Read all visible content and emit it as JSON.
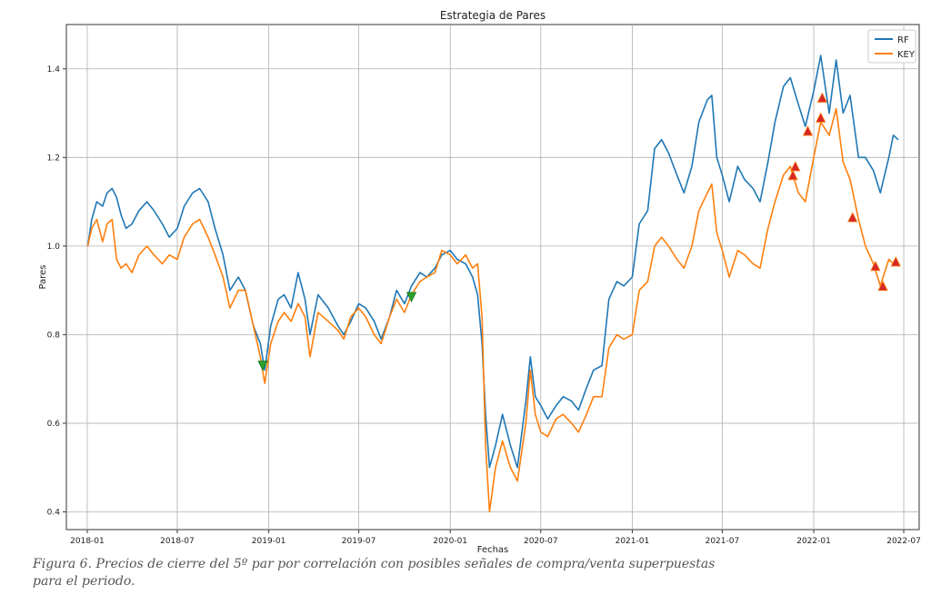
{
  "caption": "Figura 6. Precios de cierre del 5º par por correlación con posibles señales de compra/venta superpuestas para el periodo.",
  "chart_data": {
    "type": "line",
    "title": "Estrategia de Pares",
    "xlabel": "Fechas",
    "ylabel": "Pares",
    "ylim": [
      0.36,
      1.5
    ],
    "xlim": [
      "2017-11-20",
      "2022-08-01"
    ],
    "yticks": [
      "0.4",
      "0.6",
      "0.8",
      "1.0",
      "1.2",
      "1.4"
    ],
    "xticks": [
      "2018-01",
      "2018-07",
      "2019-01",
      "2019-07",
      "2020-01",
      "2020-07",
      "2021-01",
      "2021-07",
      "2022-01",
      "2022-07"
    ],
    "grid": true,
    "legend": "top-right",
    "colors": {
      "RF": "#1f77b4",
      "KEY": "#ff7f0e",
      "buy": "#2ca02c",
      "sell": "#d62728"
    },
    "series": [
      {
        "name": "RF",
        "points": [
          [
            "2018-01-02",
            1.0
          ],
          [
            "2018-01-10",
            1.06
          ],
          [
            "2018-01-20",
            1.1
          ],
          [
            "2018-02-01",
            1.09
          ],
          [
            "2018-02-10",
            1.12
          ],
          [
            "2018-02-20",
            1.13
          ],
          [
            "2018-03-01",
            1.11
          ],
          [
            "2018-03-10",
            1.07
          ],
          [
            "2018-03-20",
            1.04
          ],
          [
            "2018-04-01",
            1.05
          ],
          [
            "2018-04-15",
            1.08
          ],
          [
            "2018-05-01",
            1.1
          ],
          [
            "2018-05-15",
            1.08
          ],
          [
            "2018-06-01",
            1.05
          ],
          [
            "2018-06-15",
            1.02
          ],
          [
            "2018-07-01",
            1.04
          ],
          [
            "2018-07-15",
            1.09
          ],
          [
            "2018-08-01",
            1.12
          ],
          [
            "2018-08-15",
            1.13
          ],
          [
            "2018-09-01",
            1.1
          ],
          [
            "2018-09-15",
            1.04
          ],
          [
            "2018-10-01",
            0.98
          ],
          [
            "2018-10-15",
            0.9
          ],
          [
            "2018-11-01",
            0.93
          ],
          [
            "2018-11-15",
            0.9
          ],
          [
            "2018-12-01",
            0.82
          ],
          [
            "2018-12-15",
            0.78
          ],
          [
            "2018-12-24",
            0.72
          ],
          [
            "2019-01-05",
            0.82
          ],
          [
            "2019-01-20",
            0.88
          ],
          [
            "2019-02-01",
            0.89
          ],
          [
            "2019-02-15",
            0.86
          ],
          [
            "2019-03-01",
            0.94
          ],
          [
            "2019-03-15",
            0.88
          ],
          [
            "2019-03-25",
            0.8
          ],
          [
            "2019-04-10",
            0.89
          ],
          [
            "2019-05-01",
            0.86
          ],
          [
            "2019-05-20",
            0.82
          ],
          [
            "2019-06-01",
            0.8
          ],
          [
            "2019-06-15",
            0.83
          ],
          [
            "2019-07-01",
            0.87
          ],
          [
            "2019-07-15",
            0.86
          ],
          [
            "2019-08-01",
            0.83
          ],
          [
            "2019-08-15",
            0.79
          ],
          [
            "2019-09-01",
            0.84
          ],
          [
            "2019-09-15",
            0.9
          ],
          [
            "2019-10-01",
            0.87
          ],
          [
            "2019-10-15",
            0.91
          ],
          [
            "2019-11-01",
            0.94
          ],
          [
            "2019-11-15",
            0.93
          ],
          [
            "2019-12-01",
            0.95
          ],
          [
            "2019-12-15",
            0.98
          ],
          [
            "2020-01-01",
            0.99
          ],
          [
            "2020-01-15",
            0.97
          ],
          [
            "2020-02-01",
            0.96
          ],
          [
            "2020-02-15",
            0.93
          ],
          [
            "2020-02-25",
            0.89
          ],
          [
            "2020-03-05",
            0.78
          ],
          [
            "2020-03-12",
            0.62
          ],
          [
            "2020-03-20",
            0.5
          ],
          [
            "2020-04-01",
            0.55
          ],
          [
            "2020-04-15",
            0.62
          ],
          [
            "2020-05-01",
            0.55
          ],
          [
            "2020-05-15",
            0.5
          ],
          [
            "2020-06-01",
            0.65
          ],
          [
            "2020-06-10",
            0.75
          ],
          [
            "2020-06-20",
            0.66
          ],
          [
            "2020-07-01",
            0.64
          ],
          [
            "2020-07-15",
            0.61
          ],
          [
            "2020-08-01",
            0.64
          ],
          [
            "2020-08-15",
            0.66
          ],
          [
            "2020-09-01",
            0.65
          ],
          [
            "2020-09-15",
            0.63
          ],
          [
            "2020-10-01",
            0.68
          ],
          [
            "2020-10-15",
            0.72
          ],
          [
            "2020-11-01",
            0.73
          ],
          [
            "2020-11-15",
            0.88
          ],
          [
            "2020-12-01",
            0.92
          ],
          [
            "2020-12-15",
            0.91
          ],
          [
            "2021-01-01",
            0.93
          ],
          [
            "2021-01-15",
            1.05
          ],
          [
            "2021-02-01",
            1.08
          ],
          [
            "2021-02-15",
            1.22
          ],
          [
            "2021-03-01",
            1.24
          ],
          [
            "2021-03-15",
            1.21
          ],
          [
            "2021-04-01",
            1.16
          ],
          [
            "2021-04-15",
            1.12
          ],
          [
            "2021-05-01",
            1.18
          ],
          [
            "2021-05-15",
            1.28
          ],
          [
            "2021-06-01",
            1.33
          ],
          [
            "2021-06-10",
            1.34
          ],
          [
            "2021-06-20",
            1.2
          ],
          [
            "2021-07-01",
            1.16
          ],
          [
            "2021-07-15",
            1.1
          ],
          [
            "2021-08-01",
            1.18
          ],
          [
            "2021-08-15",
            1.15
          ],
          [
            "2021-09-01",
            1.13
          ],
          [
            "2021-09-15",
            1.1
          ],
          [
            "2021-10-01",
            1.19
          ],
          [
            "2021-10-15",
            1.28
          ],
          [
            "2021-11-01",
            1.36
          ],
          [
            "2021-11-15",
            1.38
          ],
          [
            "2021-12-01",
            1.32
          ],
          [
            "2021-12-15",
            1.27
          ],
          [
            "2022-01-01",
            1.35
          ],
          [
            "2022-01-15",
            1.43
          ],
          [
            "2022-02-01",
            1.3
          ],
          [
            "2022-02-15",
            1.42
          ],
          [
            "2022-03-01",
            1.3
          ],
          [
            "2022-03-15",
            1.34
          ],
          [
            "2022-04-01",
            1.2
          ],
          [
            "2022-04-15",
            1.2
          ],
          [
            "2022-05-01",
            1.17
          ],
          [
            "2022-05-15",
            1.12
          ],
          [
            "2022-06-01",
            1.2
          ],
          [
            "2022-06-10",
            1.25
          ],
          [
            "2022-06-20",
            1.24
          ]
        ]
      },
      {
        "name": "KEY",
        "points": [
          [
            "2018-01-02",
            1.0
          ],
          [
            "2018-01-10",
            1.04
          ],
          [
            "2018-01-20",
            1.06
          ],
          [
            "2018-02-01",
            1.01
          ],
          [
            "2018-02-10",
            1.05
          ],
          [
            "2018-02-20",
            1.06
          ],
          [
            "2018-03-01",
            0.97
          ],
          [
            "2018-03-10",
            0.95
          ],
          [
            "2018-03-20",
            0.96
          ],
          [
            "2018-04-01",
            0.94
          ],
          [
            "2018-04-15",
            0.98
          ],
          [
            "2018-05-01",
            1.0
          ],
          [
            "2018-05-15",
            0.98
          ],
          [
            "2018-06-01",
            0.96
          ],
          [
            "2018-06-15",
            0.98
          ],
          [
            "2018-07-01",
            0.97
          ],
          [
            "2018-07-15",
            1.02
          ],
          [
            "2018-08-01",
            1.05
          ],
          [
            "2018-08-15",
            1.06
          ],
          [
            "2018-09-01",
            1.02
          ],
          [
            "2018-09-15",
            0.98
          ],
          [
            "2018-10-01",
            0.93
          ],
          [
            "2018-10-15",
            0.86
          ],
          [
            "2018-11-01",
            0.9
          ],
          [
            "2018-11-15",
            0.9
          ],
          [
            "2018-12-01",
            0.82
          ],
          [
            "2018-12-15",
            0.75
          ],
          [
            "2018-12-24",
            0.69
          ],
          [
            "2019-01-05",
            0.78
          ],
          [
            "2019-01-20",
            0.83
          ],
          [
            "2019-02-01",
            0.85
          ],
          [
            "2019-02-15",
            0.83
          ],
          [
            "2019-03-01",
            0.87
          ],
          [
            "2019-03-15",
            0.84
          ],
          [
            "2019-03-25",
            0.75
          ],
          [
            "2019-04-10",
            0.85
          ],
          [
            "2019-05-01",
            0.83
          ],
          [
            "2019-05-20",
            0.81
          ],
          [
            "2019-06-01",
            0.79
          ],
          [
            "2019-06-15",
            0.84
          ],
          [
            "2019-07-01",
            0.86
          ],
          [
            "2019-07-15",
            0.84
          ],
          [
            "2019-08-01",
            0.8
          ],
          [
            "2019-08-15",
            0.78
          ],
          [
            "2019-09-01",
            0.84
          ],
          [
            "2019-09-15",
            0.88
          ],
          [
            "2019-10-01",
            0.85
          ],
          [
            "2019-10-15",
            0.89
          ],
          [
            "2019-11-01",
            0.92
          ],
          [
            "2019-11-15",
            0.93
          ],
          [
            "2019-12-01",
            0.94
          ],
          [
            "2019-12-15",
            0.99
          ],
          [
            "2020-01-01",
            0.98
          ],
          [
            "2020-01-15",
            0.96
          ],
          [
            "2020-02-01",
            0.98
          ],
          [
            "2020-02-15",
            0.95
          ],
          [
            "2020-02-25",
            0.96
          ],
          [
            "2020-03-05",
            0.84
          ],
          [
            "2020-03-12",
            0.55
          ],
          [
            "2020-03-20",
            0.4
          ],
          [
            "2020-04-01",
            0.5
          ],
          [
            "2020-04-15",
            0.56
          ],
          [
            "2020-05-01",
            0.5
          ],
          [
            "2020-05-15",
            0.47
          ],
          [
            "2020-06-01",
            0.6
          ],
          [
            "2020-06-10",
            0.72
          ],
          [
            "2020-06-20",
            0.62
          ],
          [
            "2020-07-01",
            0.58
          ],
          [
            "2020-07-15",
            0.57
          ],
          [
            "2020-08-01",
            0.61
          ],
          [
            "2020-08-15",
            0.62
          ],
          [
            "2020-09-01",
            0.6
          ],
          [
            "2020-09-15",
            0.58
          ],
          [
            "2020-10-01",
            0.62
          ],
          [
            "2020-10-15",
            0.66
          ],
          [
            "2020-11-01",
            0.66
          ],
          [
            "2020-11-15",
            0.77
          ],
          [
            "2020-12-01",
            0.8
          ],
          [
            "2020-12-15",
            0.79
          ],
          [
            "2021-01-01",
            0.8
          ],
          [
            "2021-01-15",
            0.9
          ],
          [
            "2021-02-01",
            0.92
          ],
          [
            "2021-02-15",
            1.0
          ],
          [
            "2021-03-01",
            1.02
          ],
          [
            "2021-03-15",
            1.0
          ],
          [
            "2021-04-01",
            0.97
          ],
          [
            "2021-04-15",
            0.95
          ],
          [
            "2021-05-01",
            1.0
          ],
          [
            "2021-05-15",
            1.08
          ],
          [
            "2021-06-01",
            1.12
          ],
          [
            "2021-06-10",
            1.14
          ],
          [
            "2021-06-20",
            1.03
          ],
          [
            "2021-07-01",
            0.99
          ],
          [
            "2021-07-15",
            0.93
          ],
          [
            "2021-08-01",
            0.99
          ],
          [
            "2021-08-15",
            0.98
          ],
          [
            "2021-09-01",
            0.96
          ],
          [
            "2021-09-15",
            0.95
          ],
          [
            "2021-10-01",
            1.04
          ],
          [
            "2021-10-15",
            1.1
          ],
          [
            "2021-11-01",
            1.16
          ],
          [
            "2021-11-15",
            1.18
          ],
          [
            "2021-12-01",
            1.12
          ],
          [
            "2021-12-15",
            1.1
          ],
          [
            "2022-01-01",
            1.2
          ],
          [
            "2022-01-15",
            1.28
          ],
          [
            "2022-02-01",
            1.25
          ],
          [
            "2022-02-15",
            1.31
          ],
          [
            "2022-03-01",
            1.19
          ],
          [
            "2022-03-15",
            1.15
          ],
          [
            "2022-04-01",
            1.06
          ],
          [
            "2022-04-15",
            1.0
          ],
          [
            "2022-05-01",
            0.96
          ],
          [
            "2022-05-15",
            0.91
          ],
          [
            "2022-06-01",
            0.97
          ],
          [
            "2022-06-10",
            0.96
          ],
          [
            "2022-06-20",
            0.96
          ]
        ]
      }
    ],
    "signals": [
      {
        "kind": "buy",
        "date": "2018-12-20",
        "value": 0.73
      },
      {
        "kind": "buy",
        "date": "2019-10-15",
        "value": 0.885
      },
      {
        "kind": "sell",
        "date": "2021-11-20",
        "value": 1.16
      },
      {
        "kind": "sell",
        "date": "2021-11-25",
        "value": 1.18
      },
      {
        "kind": "sell",
        "date": "2021-12-20",
        "value": 1.26
      },
      {
        "kind": "sell",
        "date": "2022-01-15",
        "value": 1.29
      },
      {
        "kind": "sell",
        "date": "2022-01-18",
        "value": 1.335
      },
      {
        "kind": "sell",
        "date": "2022-03-20",
        "value": 1.065
      },
      {
        "kind": "sell",
        "date": "2022-05-05",
        "value": 0.955
      },
      {
        "kind": "sell",
        "date": "2022-05-20",
        "value": 0.91
      },
      {
        "kind": "sell",
        "date": "2022-06-15",
        "value": 0.965
      }
    ]
  }
}
